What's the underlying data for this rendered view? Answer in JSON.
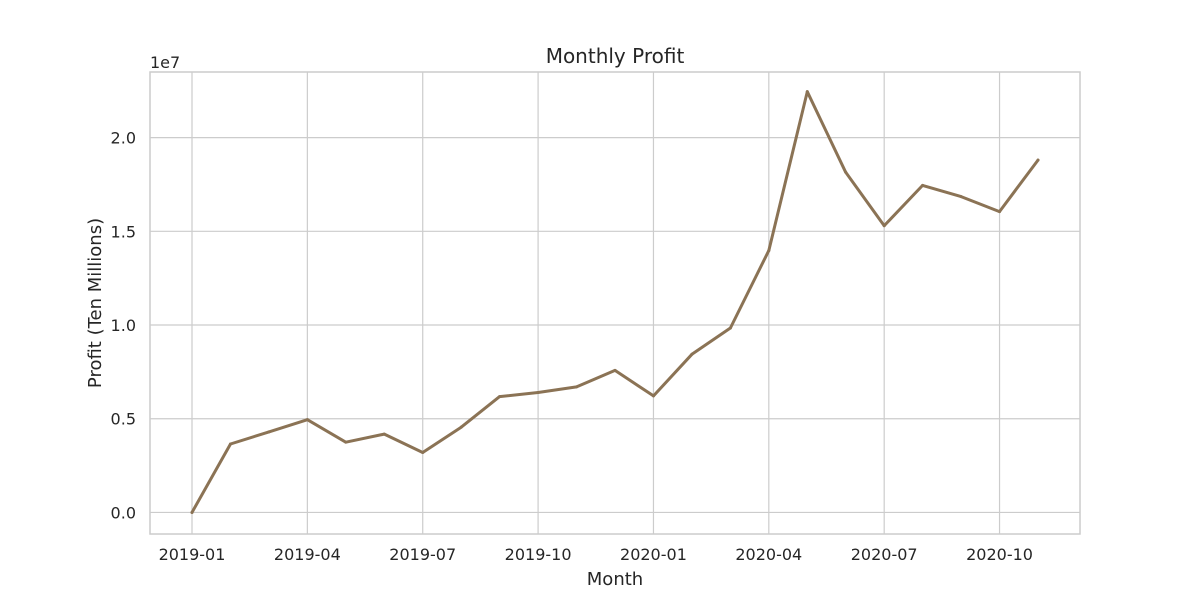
{
  "chart_data": {
    "type": "line",
    "title": "Monthly Profit",
    "xlabel": "Month",
    "ylabel": "Profit (Ten Millions)",
    "y_offset_label": "1e7",
    "x": [
      "2019-01",
      "2019-02",
      "2019-03",
      "2019-04",
      "2019-05",
      "2019-06",
      "2019-07",
      "2019-08",
      "2019-09",
      "2019-10",
      "2019-11",
      "2019-12",
      "2020-01",
      "2020-02",
      "2020-03",
      "2020-04",
      "2020-05",
      "2020-06",
      "2020-07",
      "2020-08",
      "2020-09",
      "2020-10",
      "2020-11"
    ],
    "series": [
      {
        "values": [
          0,
          3650000,
          4300000,
          4950000,
          3750000,
          4180000,
          3200000,
          4550000,
          6180000,
          6400000,
          6700000,
          7580000,
          6220000,
          8440000,
          9840000,
          13970000,
          22450000,
          18150000,
          15300000,
          17450000,
          16850000,
          16050000,
          18800000
        ],
        "color": "#8b7355"
      }
    ],
    "x_ticks": [
      "2019-01",
      "2019-04",
      "2019-07",
      "2019-10",
      "2020-01",
      "2020-04",
      "2020-07",
      "2020-10"
    ],
    "y_ticks": [
      "0.0",
      "0.5",
      "1.0",
      "1.5",
      "2.0"
    ],
    "y_tick_values": [
      0,
      5000000,
      10000000,
      15000000,
      20000000
    ],
    "ylim": [
      -1150000,
      23500000
    ],
    "grid": true
  }
}
